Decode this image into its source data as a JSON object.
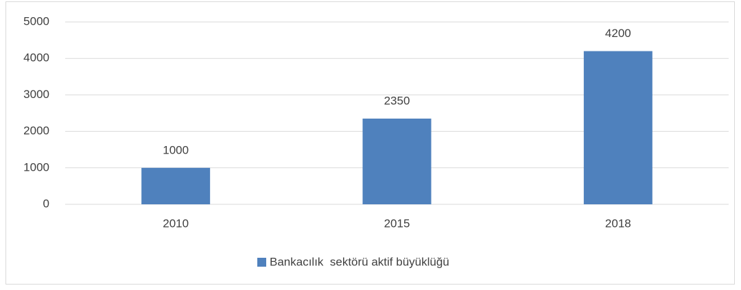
{
  "chart_data": {
    "type": "bar",
    "categories": [
      "2010",
      "2015",
      "2018"
    ],
    "series": [
      {
        "name": "Bankacılık  sektörü aktif büyüklüğü",
        "color": "#4f81bd",
        "values": [
          1000,
          2350,
          4200
        ]
      }
    ],
    "ylim": [
      0,
      5000
    ],
    "yticks": [
      0,
      1000,
      2000,
      3000,
      4000,
      5000
    ],
    "grid": true,
    "legend": "bottom",
    "data_labels": true
  }
}
